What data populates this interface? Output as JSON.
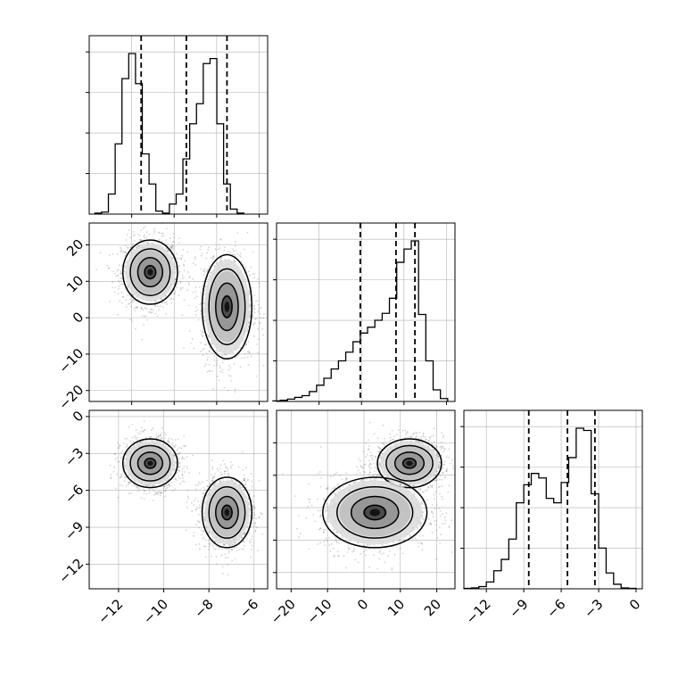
{
  "chart_data": {
    "type": "corner",
    "grid": true,
    "colors": {
      "line": "#000000",
      "grid": "#b0b0b0",
      "points": "#555555"
    },
    "panels": [
      {
        "id": "hist-0",
        "type": "histogram",
        "x": [
          -12.9,
          -12.6,
          -12.3,
          -12.0,
          -11.7,
          -11.4,
          -11.1,
          -10.8,
          -10.5,
          -10.2,
          -9.9,
          -9.6,
          -9.3,
          -9.0,
          -8.7,
          -8.4,
          -8.1,
          -7.8,
          -7.5,
          -7.2,
          -6.9,
          -6.6
        ],
        "counts": [
          1,
          2,
          20,
          70,
          135,
          160,
          130,
          60,
          30,
          3,
          1,
          10,
          20,
          55,
          90,
          110,
          150,
          155,
          90,
          30,
          5,
          1
        ],
        "quantile_lines": [
          -11.0,
          -9.0,
          -7.2
        ],
        "xlim": [
          -13.3,
          -5.4
        ]
      },
      {
        "id": "scatter-1-0",
        "type": "scatter-contour",
        "xlim": [
          -13.3,
          -5.4
        ],
        "ylim": [
          -23,
          26
        ],
        "yticks": [
          -20,
          -10,
          0,
          10,
          20
        ],
        "modes": [
          {
            "x": -10.6,
            "y": 12.5,
            "sx": 0.55,
            "sy": 4.0
          },
          {
            "x": -7.2,
            "y": 3.0,
            "sx": 0.5,
            "sy": 6.5
          }
        ]
      },
      {
        "id": "hist-1",
        "type": "histogram",
        "x": [
          -24,
          -22,
          -20,
          -18,
          -16,
          -14,
          -12,
          -10,
          -8,
          -6,
          -4,
          -2,
          0,
          2,
          4,
          6,
          8,
          10,
          12,
          14,
          16,
          18,
          20,
          22
        ],
        "counts": [
          1,
          2,
          4,
          7,
          10,
          17,
          28,
          40,
          56,
          70,
          85,
          103,
          118,
          128,
          140,
          152,
          178,
          240,
          263,
          277,
          150,
          70,
          20,
          5
        ],
        "quantile_lines": [
          -1.0,
          8.8,
          14.0
        ],
        "xlim": [
          -24,
          25
        ]
      },
      {
        "id": "scatter-2-0",
        "type": "scatter-contour",
        "xlim": [
          -13.3,
          -5.4
        ],
        "ylim": [
          -14.0,
          0.5
        ],
        "yticks": [
          0,
          -3,
          -6,
          -9,
          -12
        ],
        "xticks": [
          -12,
          -10,
          -8,
          -6
        ],
        "modes": [
          {
            "x": -10.6,
            "y": -3.8,
            "sx": 0.55,
            "sy": 0.9
          },
          {
            "x": -7.2,
            "y": -7.8,
            "sx": 0.5,
            "sy": 1.3
          }
        ]
      },
      {
        "id": "scatter-2-1",
        "type": "scatter-contour",
        "xlim": [
          -24,
          25
        ],
        "ylim": [
          -14.0,
          0.5
        ],
        "xticks": [
          -20,
          -10,
          0,
          10,
          20
        ],
        "modes": [
          {
            "x": 12.5,
            "y": -3.8,
            "sx": 4.0,
            "sy": 0.9
          },
          {
            "x": 3.0,
            "y": -7.8,
            "sx": 6.5,
            "sy": 1.3
          }
        ]
      },
      {
        "id": "hist-2",
        "type": "histogram",
        "x": [
          -13.5,
          -12.9,
          -12.3,
          -11.7,
          -11.1,
          -10.5,
          -9.9,
          -9.3,
          -8.7,
          -8.1,
          -7.5,
          -6.9,
          -6.3,
          -5.7,
          -5.1,
          -4.5,
          -3.9,
          -3.3,
          -2.7,
          -2.1,
          -1.5,
          -0.9,
          -0.3
        ],
        "counts": [
          1,
          2,
          5,
          15,
          40,
          65,
          110,
          190,
          230,
          255,
          245,
          200,
          190,
          235,
          290,
          355,
          350,
          210,
          90,
          35,
          10,
          2,
          1
        ],
        "quantile_lines": [
          -8.6,
          -5.5,
          -3.3
        ],
        "xlim": [
          -13.8,
          0.5
        ],
        "xticks": [
          -12,
          -9,
          -6,
          -3,
          0
        ]
      }
    ]
  }
}
